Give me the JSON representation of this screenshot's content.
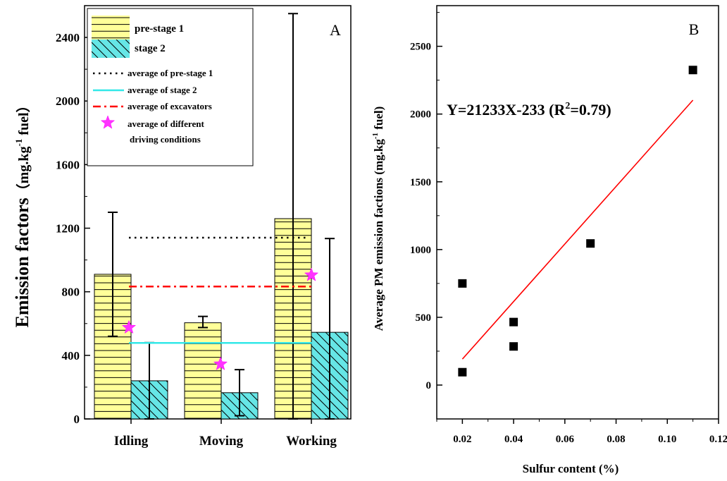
{
  "chart_data": [
    {
      "panel_label": "A",
      "type": "bar",
      "ylabel": "Emission factors　（mg.kg⁻¹ fuel）",
      "ylabel_main": "Emission factors",
      "ylabel_unit_open": "（mg.kg",
      "ylabel_unit_sup": "-1",
      "ylabel_unit_close": " fuel）",
      "ylim": [
        0,
        2600
      ],
      "yticks": [
        "0",
        "400",
        "800",
        "1200",
        "1600",
        "2000",
        "2400"
      ],
      "categories": [
        "Idling",
        "Moving",
        "Working"
      ],
      "series": [
        {
          "name": "pre-stage 1",
          "values": [
            910,
            605,
            1260
          ],
          "error_low": [
            520,
            575,
            0
          ],
          "error_high": [
            1300,
            645,
            2550
          ],
          "color": "#ffff99"
        },
        {
          "name": "stage 2",
          "values": [
            240,
            165,
            545
          ],
          "error_low": [
            0,
            20,
            0
          ],
          "error_high": [
            480,
            310,
            1135
          ],
          "color": "#66e6e6"
        }
      ],
      "averages": [
        {
          "name": "average of pre-stage 1",
          "value": 1140,
          "color": "#000000"
        },
        {
          "name": "average of stage 2",
          "value": 478,
          "color": "#33e8e8"
        },
        {
          "name": "average of excavators",
          "value": 833,
          "color": "#ff0000"
        }
      ],
      "stars": {
        "name1": "average of different",
        "name2": "driving conditions",
        "values": [
          575,
          345,
          905
        ],
        "color": "#ff33ff"
      }
    },
    {
      "panel_label": "B",
      "type": "scatter",
      "xlabel": "Sulfur content (%)",
      "ylabel_main": "Average PM emission factions (mg.kg",
      "ylabel_sup": "-1",
      "ylabel_end": " fuel)",
      "xlim": [
        0.01,
        0.12
      ],
      "ylim": [
        -250,
        2800
      ],
      "xticks": [
        "0.02",
        "0.04",
        "0.06",
        "0.08",
        "0.10",
        "0.12"
      ],
      "yticks": [
        "0",
        "500",
        "1000",
        "1500",
        "2000",
        "2500"
      ],
      "points": [
        {
          "x": 0.02,
          "y": 750
        },
        {
          "x": 0.02,
          "y": 95
        },
        {
          "x": 0.04,
          "y": 465
        },
        {
          "x": 0.04,
          "y": 285
        },
        {
          "x": 0.07,
          "y": 1045
        },
        {
          "x": 0.11,
          "y": 2325
        }
      ],
      "fit": {
        "slope": 21233,
        "intercept": -233,
        "x_range": [
          0.02,
          0.11
        ],
        "color": "#ff0000"
      },
      "equation_main": "Y=21233X-233 (R",
      "equation_sup": "2",
      "equation_end": "=0.79)"
    }
  ]
}
